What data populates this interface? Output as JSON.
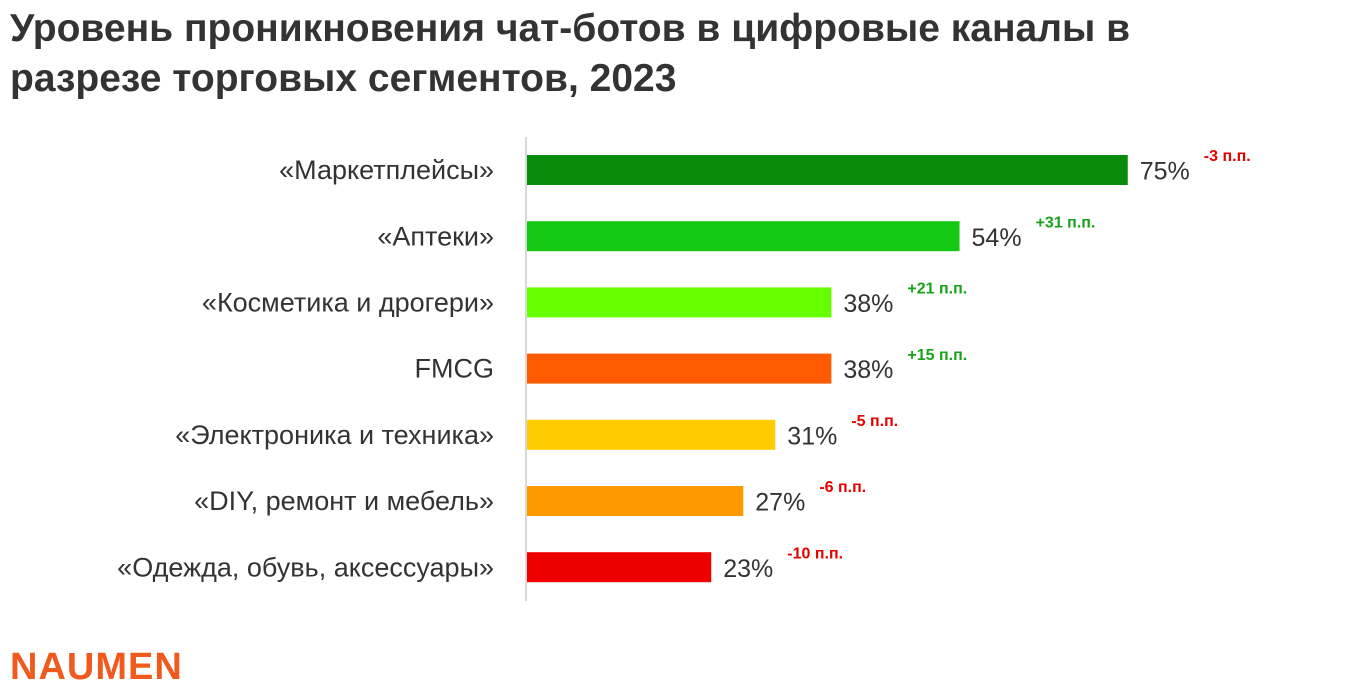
{
  "chart_data": {
    "type": "bar",
    "orientation": "horizontal",
    "title": "Уровень проникновения чат-ботов в цифровые каналы в разрезе торговых сегментов, 2023",
    "categories": [
      "«Маркетплейсы»",
      "«Аптеки»",
      "«Косметика и дрогери»",
      "FMCG",
      "«Электроника и техника»",
      "«DIY, ремонт и мебель»",
      "«Одежда, обувь, аксессуары»"
    ],
    "values": [
      75,
      54,
      38,
      38,
      31,
      27,
      23
    ],
    "value_labels": [
      "75%",
      "54%",
      "38%",
      "38%",
      "31%",
      "27%",
      "23%"
    ],
    "colors": [
      "#0a8a0a",
      "#14c814",
      "#66ff00",
      "#ff5a00",
      "#ffcc00",
      "#ff9900",
      "#ee0000"
    ],
    "xlim": [
      0,
      100
    ],
    "annotations": [
      {
        "text": "-3 п.п.",
        "value": -3,
        "color": "#e60000"
      },
      {
        "text": "+31 п.п.",
        "value": 31,
        "color": "#17a317"
      },
      {
        "text": "+21 п.п.",
        "value": 21,
        "color": "#17a317"
      },
      {
        "text": "+15 п.п.",
        "value": 15,
        "color": "#17a317"
      },
      {
        "text": "-5 п.п.",
        "value": -5,
        "color": "#e60000"
      },
      {
        "text": "-6 п.п.",
        "value": -6,
        "color": "#e60000"
      },
      {
        "text": "-10 п.п.",
        "value": -10,
        "color": "#e60000"
      }
    ],
    "logo": "NAUMEN"
  }
}
